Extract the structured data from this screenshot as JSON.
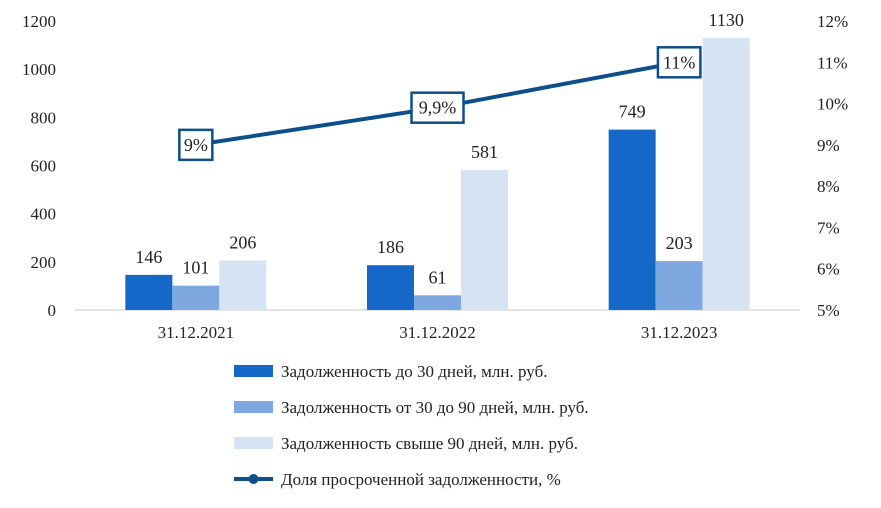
{
  "chart_data": {
    "type": "bar",
    "categories": [
      "31.12.2021",
      "31.12.2022",
      "31.12.2023"
    ],
    "series": [
      {
        "name": "Задолженность до 30 дней, млн. руб.",
        "type": "bar",
        "axis": "left",
        "values": [
          146,
          186,
          749
        ],
        "labels": [
          "146",
          "186",
          "749"
        ],
        "color": "#1668c8"
      },
      {
        "name": "Задолженность от 30 до 90 дней, млн. руб.",
        "type": "bar",
        "axis": "left",
        "values": [
          101,
          61,
          203
        ],
        "labels": [
          "101",
          "61",
          "203"
        ],
        "color": "#7ea8df"
      },
      {
        "name": "Задолженность свыше 90 дней, млн. руб.",
        "type": "bar",
        "axis": "left",
        "values": [
          206,
          581,
          1130
        ],
        "labels": [
          "206",
          "581",
          "1130"
        ],
        "color": "#d6e3f3"
      },
      {
        "name": "Доля просроченной задолженности, %",
        "type": "line",
        "axis": "right",
        "values": [
          9,
          9.9,
          11
        ],
        "labels": [
          "9%",
          "9,9%",
          "11%"
        ],
        "color": "#0d4f8b"
      }
    ],
    "y_left": {
      "min": 0,
      "max": 1200,
      "ticks": [
        "0",
        "200",
        "400",
        "600",
        "800",
        "1000",
        "1200"
      ]
    },
    "y_right": {
      "min": 5,
      "max": 12,
      "ticks": [
        "5%",
        "6%",
        "7%",
        "8%",
        "9%",
        "10%",
        "11%",
        "12%"
      ]
    },
    "grid": false,
    "legend_position": "bottom"
  }
}
